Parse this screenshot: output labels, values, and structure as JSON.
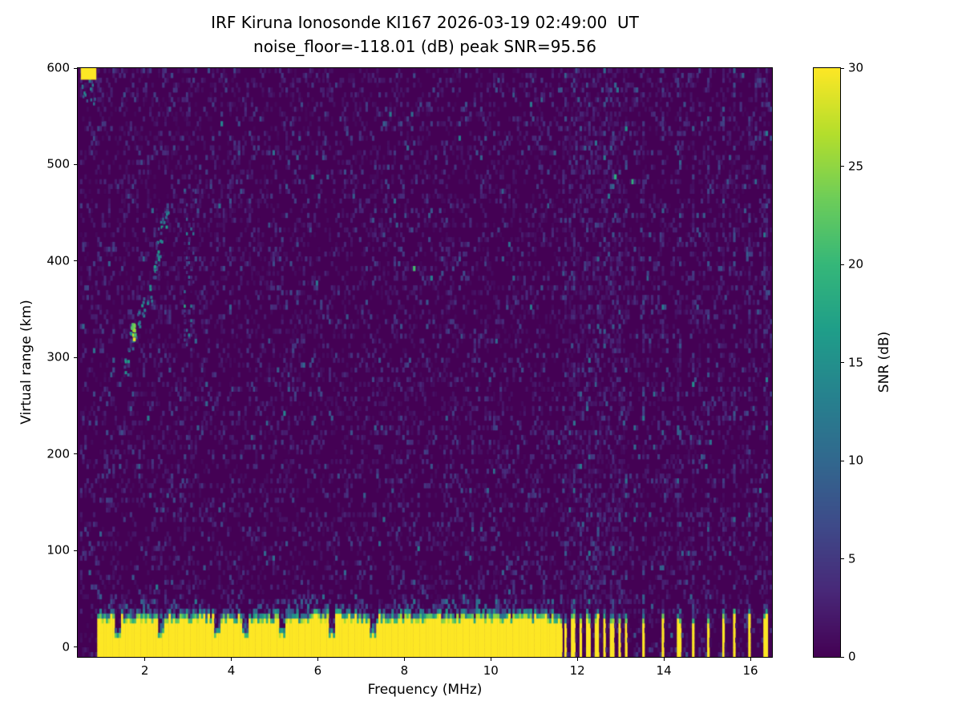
{
  "chart_data": {
    "type": "heatmap",
    "title": "IRF Kiruna Ionosonde KI167 2026-03-19 02:49:00  UT",
    "subtitle": "noise_floor=-118.01 (dB) peak SNR=95.56",
    "xlabel": "Frequency (MHz)",
    "ylabel": "Virtual range (km)",
    "colorbar_label": "SNR (dB)",
    "colormap": "viridis",
    "xlim": [
      0.45,
      16.5
    ],
    "ylim": [
      -10,
      600
    ],
    "clim": [
      0,
      30
    ],
    "x_ticks": [
      2,
      4,
      6,
      8,
      10,
      12,
      14,
      16
    ],
    "y_ticks": [
      0,
      100,
      200,
      300,
      400,
      500,
      600
    ],
    "colorbar_ticks": [
      0,
      5,
      10,
      15,
      20,
      25,
      30
    ],
    "grid": false,
    "legend": "colorbar-right",
    "features": {
      "noise": {
        "seed": 42,
        "density": 0.32,
        "scale_db": 1.8
      },
      "ground_band": {
        "start_mhz": 0.9,
        "solid_until_mhz": 11.62,
        "top_km_base": 21,
        "top_km_jitter": 10,
        "fringe_km": 10,
        "speckle_above_km": 22,
        "notches_mhz": [
          1.35,
          2.35,
          3.65,
          4.3,
          5.15,
          6.3,
          7.25
        ],
        "bars_mhz": [
          [
            11.66,
            11.74
          ],
          [
            11.84,
            11.92
          ],
          [
            12.02,
            12.1
          ],
          [
            12.2,
            12.28
          ],
          [
            12.38,
            12.46
          ],
          [
            12.56,
            12.64
          ],
          [
            12.74,
            12.82
          ],
          [
            12.92,
            13.0
          ],
          [
            13.08,
            13.15
          ],
          [
            13.46,
            13.54
          ],
          [
            13.92,
            14.0
          ],
          [
            14.28,
            14.36
          ],
          [
            14.62,
            14.7
          ],
          [
            14.97,
            15.05
          ],
          [
            15.32,
            15.4
          ],
          [
            15.58,
            15.64
          ],
          [
            15.92,
            16.0
          ],
          [
            16.28,
            16.36
          ]
        ],
        "comb_region_mhz": [
          11.62,
          13.15
        ]
      },
      "rfi_stripe_intensity": 2.6,
      "echo": {
        "trace_points": [
          [
            1.55,
            290
          ],
          [
            1.65,
            315
          ],
          [
            1.72,
            330
          ],
          [
            1.82,
            342
          ],
          [
            1.95,
            352
          ],
          [
            2.1,
            368
          ],
          [
            2.2,
            390
          ],
          [
            2.3,
            412
          ],
          [
            2.4,
            432
          ],
          [
            2.5,
            448
          ]
        ],
        "bright_spot": {
          "f": 1.7,
          "r": 328,
          "snr_db": 28
        },
        "scatter_columns": [
          {
            "f0": 2.25,
            "f1": 2.45,
            "r0": 350,
            "r1": 470,
            "density": 0.15,
            "max_db": 10
          },
          {
            "f0": 2.9,
            "f1": 3.1,
            "r0": 310,
            "r1": 485,
            "density": 0.28,
            "max_db": 14
          }
        ]
      },
      "corner_artifact": {
        "f0": 0.52,
        "f1": 0.88,
        "r0": 588,
        "r1": 600
      }
    }
  }
}
